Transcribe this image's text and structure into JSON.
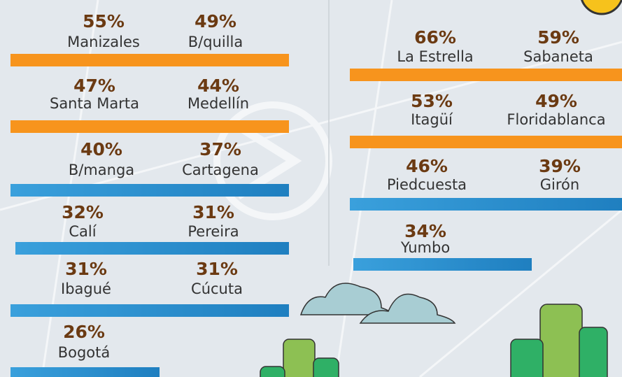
{
  "left_rows": [
    {
      "items": [
        {
          "percent": "55%",
          "city": "Manizales"
        },
        {
          "percent": "49%",
          "city": "B/quilla"
        }
      ],
      "bar_color": "#f7941d"
    },
    {
      "items": [
        {
          "percent": "47%",
          "city": "Santa Marta"
        },
        {
          "percent": "44%",
          "city": "Medellín"
        }
      ],
      "bar_color": "#f7941d"
    },
    {
      "items": [
        {
          "percent": "40%",
          "city": "B/manga"
        },
        {
          "percent": "37%",
          "city": "Cartagena"
        }
      ],
      "bar_color": "#2b8fd1"
    },
    {
      "items": [
        {
          "percent": "32%",
          "city": "Calí"
        },
        {
          "percent": "31%",
          "city": "Pereira"
        }
      ],
      "bar_color": "#2b8fd1"
    },
    {
      "items": [
        {
          "percent": "31%",
          "city": "Ibagué"
        },
        {
          "percent": "31%",
          "city": "Cúcuta"
        }
      ],
      "bar_color": "#2b8fd1"
    },
    {
      "items": [
        {
          "percent": "26%",
          "city": "Bogotá"
        }
      ],
      "bar_color": "#2b8fd1"
    }
  ],
  "right_rows": [
    {
      "items": [
        {
          "percent": "66%",
          "city": "La Estrella"
        },
        {
          "percent": "59%",
          "city": "Sabaneta"
        }
      ],
      "bar_color": "#f7941d"
    },
    {
      "items": [
        {
          "percent": "53%",
          "city": "Itagüí"
        },
        {
          "percent": "49%",
          "city": "Floridablanca"
        }
      ],
      "bar_color": "#f7941d"
    },
    {
      "items": [
        {
          "percent": "46%",
          "city": "Piedcuesta"
        },
        {
          "percent": "39%",
          "city": "Girón"
        }
      ],
      "bar_color": "#2b8fd1"
    },
    {
      "items": [
        {
          "percent": "34%",
          "city": "Yumbo"
        }
      ],
      "bar_color": "#2b8fd1"
    }
  ]
}
